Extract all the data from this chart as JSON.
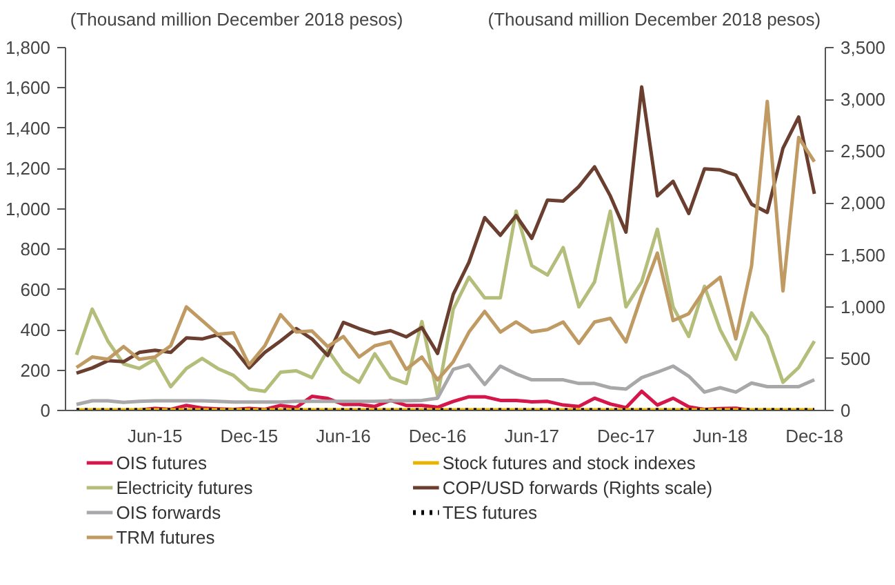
{
  "chart_data": {
    "type": "line",
    "ylabel": "(Thousand million December 2018 pesos)",
    "y2label": "(Thousand million December 2018 pesos)",
    "categories": [
      null,
      null,
      null,
      null,
      null,
      "Jun-15",
      null,
      null,
      null,
      null,
      null,
      "Dec-15",
      null,
      null,
      null,
      null,
      null,
      "Jun-16",
      null,
      null,
      null,
      null,
      null,
      "Dec-16",
      null,
      null,
      null,
      null,
      null,
      "Jun-17",
      null,
      null,
      null,
      null,
      null,
      "Dec-17",
      null,
      null,
      null,
      null,
      null,
      "Jun-18",
      null,
      null,
      null,
      null,
      null,
      "Dec-18"
    ],
    "ylim": [
      0,
      1800
    ],
    "yticks": [
      0,
      200,
      400,
      600,
      800,
      {
        "value": 1000,
        "label": "1,000"
      },
      {
        "value": 1200,
        "label": "1,200"
      },
      {
        "value": 1400,
        "label": "1,400"
      },
      {
        "value": 1600,
        "label": "1,600"
      },
      {
        "value": 1800,
        "label": "1,800"
      }
    ],
    "y2lim": [
      0,
      3500
    ],
    "y2ticks": [
      0,
      500,
      {
        "value": 1000,
        "label": "1,000"
      },
      {
        "value": 1500,
        "label": "1,500"
      },
      {
        "value": 2000,
        "label": "2,000"
      },
      {
        "value": 2500,
        "label": "2,500"
      },
      {
        "value": 3000,
        "label": "3,000"
      },
      {
        "value": 3500,
        "label": "3,500"
      }
    ],
    "grid": false,
    "legend": "bottom",
    "marker": "none",
    "series": [
      {
        "name": "OIS futures",
        "color": "#d4164a",
        "values": [
          null,
          null,
          null,
          0,
          3,
          10,
          5,
          25,
          12,
          8,
          5,
          10,
          5,
          25,
          15,
          70,
          60,
          30,
          30,
          20,
          50,
          25,
          25,
          16,
          45,
          68,
          68,
          50,
          50,
          43,
          45,
          27,
          20,
          61,
          32,
          14,
          95,
          27,
          61,
          18,
          5,
          9,
          11,
          0,
          2,
          null,
          null,
          null
        ]
      },
      {
        "name": "Stock futures and stock indexes",
        "color": "#e8b400",
        "values": [
          3,
          3,
          3,
          3,
          3,
          3,
          3,
          3,
          3,
          3,
          3,
          3,
          3,
          3,
          3,
          3,
          3,
          3,
          3,
          3,
          3,
          3,
          3,
          3,
          3,
          3,
          3,
          3,
          3,
          3,
          3,
          3,
          3,
          3,
          3,
          3,
          3,
          3,
          3,
          3,
          3,
          3,
          3,
          3,
          3,
          3,
          3,
          3
        ]
      },
      {
        "name": "Electricity futures",
        "color": "#b5bd7a",
        "values": [
          276,
          503,
          344,
          231,
          208,
          254,
          118,
          208,
          258,
          208,
          174,
          106,
          95,
          190,
          197,
          163,
          300,
          190,
          140,
          281,
          163,
          134,
          441,
          72,
          503,
          661,
          559,
          559,
          989,
          718,
          672,
          808,
          514,
          638,
          989,
          514,
          638,
          899,
          514,
          367,
          616,
          401,
          254,
          484,
          367,
          140,
          213,
          344
        ]
      },
      {
        "name": "COP/USD forwards (Rights scale)",
        "color": "#6b3f2f",
        "axis": "y2",
        "values": [
          360,
          410,
          480,
          470,
          560,
          580,
          560,
          700,
          690,
          730,
          600,
          410,
          560,
          670,
          790,
          690,
          530,
          850,
          790,
          740,
          770,
          710,
          800,
          550,
          1120,
          1430,
          1860,
          1690,
          1880,
          1660,
          2030,
          2020,
          2160,
          2350,
          2070,
          1720,
          3120,
          2070,
          2210,
          1900,
          2330,
          2320,
          2270,
          1990,
          1910,
          2530,
          2830,
          2090
        ]
      },
      {
        "name": "OIS forwards",
        "color": "#a8a8ab",
        "values": [
          30,
          48,
          48,
          40,
          45,
          48,
          48,
          48,
          48,
          45,
          42,
          42,
          42,
          42,
          45,
          45,
          45,
          45,
          45,
          45,
          48,
          48,
          50,
          61,
          204,
          226,
          129,
          220,
          181,
          152,
          152,
          152,
          134,
          134,
          113,
          106,
          163,
          190,
          220,
          170,
          91,
          113,
          91,
          136,
          118,
          118,
          118,
          152
        ]
      },
      {
        "name": "TES futures",
        "color": "#000000",
        "line_style": "dotted",
        "values": [
          0,
          0,
          0,
          0,
          0,
          0,
          0,
          0,
          0,
          0,
          0,
          0,
          0,
          0,
          0,
          0,
          0,
          0,
          0,
          0,
          0,
          0,
          0,
          0,
          0,
          0,
          0,
          0,
          0,
          0,
          0,
          0,
          0,
          0,
          0,
          0,
          0,
          0,
          0,
          0,
          0,
          0,
          0,
          0,
          0,
          0,
          0,
          0
        ]
      },
      {
        "name": "TRM futures",
        "color": "#c09a63",
        "values": [
          213,
          265,
          254,
          317,
          254,
          265,
          321,
          514,
          446,
          378,
          385,
          226,
          321,
          475,
          389,
          394,
          317,
          367,
          265,
          321,
          340,
          204,
          265,
          152,
          242,
          389,
          491,
          389,
          439,
          389,
          401,
          439,
          333,
          439,
          457,
          340,
          571,
          781,
          446,
          480,
          598,
          661,
          355,
          718,
          1533,
          593,
          1354,
          1234
        ]
      }
    ]
  }
}
